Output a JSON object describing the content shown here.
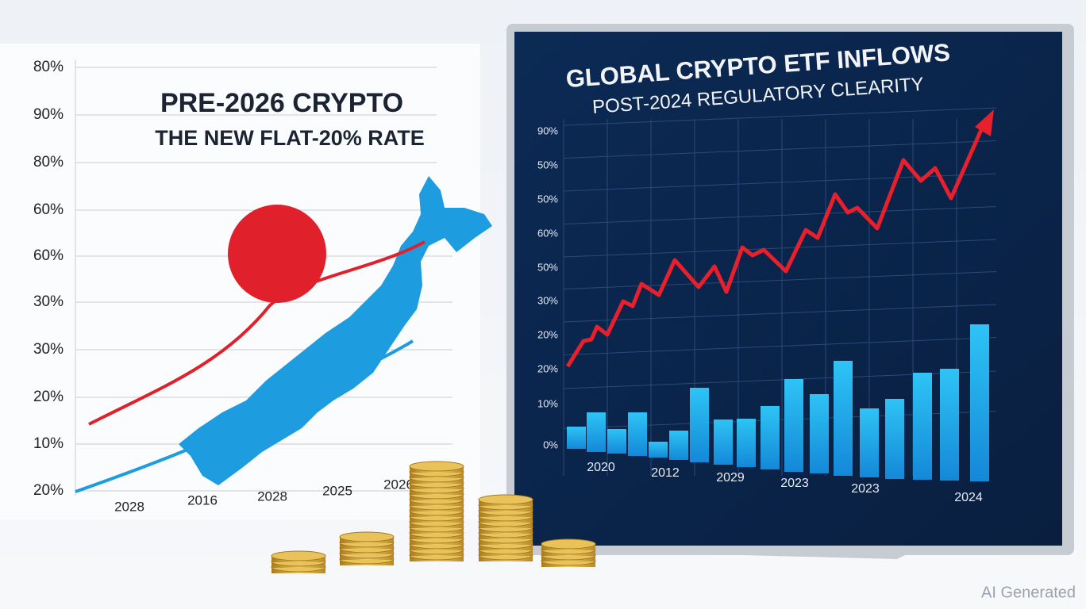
{
  "left_chart": {
    "title": "PRE-2026 CRYPTO",
    "subtitle": "THE NEW FLAT-20% RATE",
    "y_labels": [
      "80%",
      "90%",
      "80%",
      "60%",
      "60%",
      "30%",
      "30%",
      "20%",
      "10%",
      "20%"
    ],
    "x_labels": [
      "2028",
      "2016",
      "2028",
      "2025",
      "2026"
    ]
  },
  "right_chart": {
    "title": "GLOBAL CRYPTO ETF INFLOWS",
    "subtitle": "POST-2024 REGULATORY CLEARITY",
    "y_labels": [
      "90%",
      "50%",
      "50%",
      "60%",
      "50%",
      "30%",
      "20%",
      "20%",
      "10%",
      "0%"
    ],
    "x_labels": [
      "2020",
      "2012",
      "2029",
      "2023",
      "2023",
      "2024"
    ]
  },
  "watermark": "AI Generated"
}
